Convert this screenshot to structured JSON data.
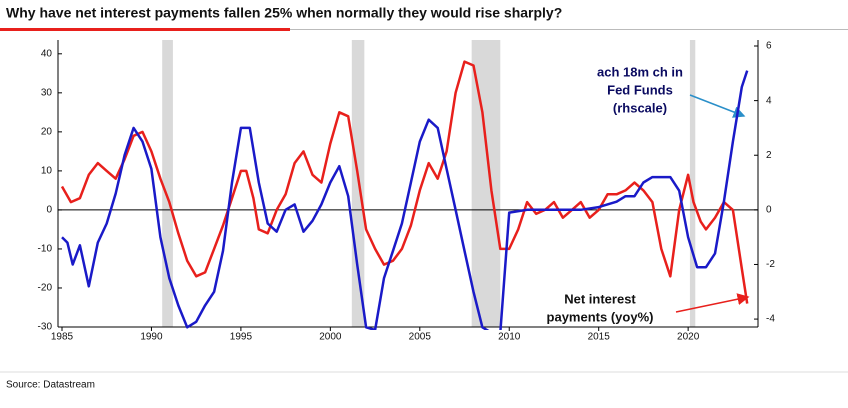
{
  "chart_data": {
    "type": "line",
    "title": "Why have net interest payments fallen 25% when normally they would rise sharply?",
    "source": "Source: Datastream",
    "xlim": [
      1985,
      2024
    ],
    "xticks": [
      1985,
      1990,
      1995,
      2000,
      2005,
      2010,
      2015,
      2020
    ],
    "ylim": [
      -30,
      42
    ],
    "yticks": [
      -30,
      -20,
      -10,
      0,
      10,
      20,
      30,
      40
    ],
    "y2lim": [
      -4.29,
      6
    ],
    "y2ticks": [
      -4,
      -2,
      0,
      2,
      4,
      6
    ],
    "shaded_periods": [
      [
        1990.6,
        1991.2
      ],
      [
        2001.2,
        2001.9
      ],
      [
        2007.9,
        2009.5
      ],
      [
        2020.1,
        2020.4
      ]
    ],
    "shade_color": "#d9d9d9",
    "series": [
      {
        "name": "Net interest payments (yoy%)",
        "color": "#e8201c",
        "axis": "y",
        "x": [
          1985,
          1985.5,
          1986,
          1986.5,
          1987,
          1987.5,
          1988,
          1988.5,
          1989,
          1989.5,
          1990,
          1990.5,
          1991,
          1991.5,
          1992,
          1992.5,
          1993,
          1993.5,
          1994,
          1994.5,
          1995,
          1995.3,
          1995.7,
          1996,
          1996.5,
          1997,
          1997.5,
          1998,
          1998.5,
          1999,
          1999.5,
          2000,
          2000.5,
          2001,
          2001.5,
          2002,
          2002.5,
          2003,
          2003.5,
          2004,
          2004.5,
          2005,
          2005.5,
          2006,
          2006.5,
          2007,
          2007.5,
          2008,
          2008.5,
          2009,
          2009.5,
          2010,
          2010.5,
          2011,
          2011.5,
          2012,
          2012.5,
          2013,
          2013.5,
          2014,
          2014.5,
          2015,
          2015.5,
          2016,
          2016.5,
          2017,
          2017.5,
          2018,
          2018.5,
          2019,
          2019.5,
          2020,
          2020.3,
          2020.7,
          2021,
          2021.5,
          2022,
          2022.5,
          2023,
          2023.3
        ],
        "values": [
          6,
          2,
          3,
          9,
          12,
          10,
          8,
          13,
          19,
          20,
          15,
          8,
          2,
          -6,
          -13,
          -17,
          -16,
          -10,
          -4,
          3,
          10,
          10,
          3,
          -5,
          -6,
          0,
          4,
          12,
          15,
          9,
          7,
          17,
          25,
          24,
          10,
          -5,
          -10,
          -14,
          -13,
          -10,
          -4,
          5,
          12,
          8,
          15,
          30,
          38,
          37,
          25,
          5,
          -10,
          -10,
          -5,
          2,
          -1,
          0,
          2,
          -2,
          0,
          2,
          -2,
          0,
          4,
          4,
          5,
          7,
          5,
          2,
          -10,
          -17,
          0,
          9,
          2,
          -3,
          -5,
          -2,
          2,
          0,
          -15,
          -24
        ]
      },
      {
        "name": "ach 18m ch in Fed Funds (rhscale)",
        "color": "#1a1ac8",
        "axis": "y2",
        "x": [
          1985,
          1985.3,
          1985.6,
          1986,
          1986.5,
          1987,
          1987.5,
          1988,
          1988.5,
          1989,
          1989.5,
          1990,
          1990.5,
          1991,
          1991.5,
          1992,
          1992.5,
          1993,
          1993.5,
          1994,
          1994.5,
          1995,
          1995.5,
          1996,
          1996.5,
          1997,
          1997.5,
          1998,
          1998.5,
          1999,
          1999.5,
          2000,
          2000.5,
          2001,
          2001.5,
          2002,
          2002.5,
          2003,
          2003.5,
          2004,
          2004.5,
          2005,
          2005.5,
          2006,
          2006.5,
          2007,
          2007.5,
          2008,
          2008.5,
          2009,
          2009.5,
          2010,
          2011,
          2012,
          2013,
          2014,
          2015,
          2016,
          2016.5,
          2017,
          2017.5,
          2018,
          2018.5,
          2019,
          2019.5,
          2020,
          2020.5,
          2021,
          2021.5,
          2022,
          2022.5,
          2023,
          2023.3
        ],
        "values": [
          -1,
          -1.2,
          -2,
          -1.3,
          -2.8,
          -1.2,
          -0.5,
          0.6,
          2,
          3,
          2.5,
          1.5,
          -1,
          -2.5,
          -3.5,
          -4.3,
          -4.1,
          -3.5,
          -3,
          -1.5,
          1,
          3,
          3,
          1,
          -0.5,
          -0.8,
          0,
          0.2,
          -0.8,
          -0.4,
          0.2,
          1,
          1.6,
          0.5,
          -2,
          -4.3,
          -4.4,
          -2.5,
          -1.5,
          -0.5,
          1,
          2.5,
          3.3,
          3,
          1.5,
          0,
          -1.5,
          -3,
          -4.3,
          -4.5,
          -4.5,
          -0.1,
          0,
          0,
          0,
          0,
          0.1,
          0.3,
          0.5,
          0.5,
          1,
          1.2,
          1.2,
          1.2,
          0.7,
          -1,
          -2.1,
          -2.1,
          -1.6,
          0.3,
          2.5,
          4.5,
          5.1
        ]
      }
    ],
    "annotations": [
      {
        "lines": [
          "ach 18m ch in",
          "Fed Funds",
          "(rhscale)"
        ],
        "color": "#0a0a60"
      },
      {
        "lines": [
          "Net interest",
          "payments (yoy%)"
        ],
        "color": "#111111"
      }
    ]
  }
}
